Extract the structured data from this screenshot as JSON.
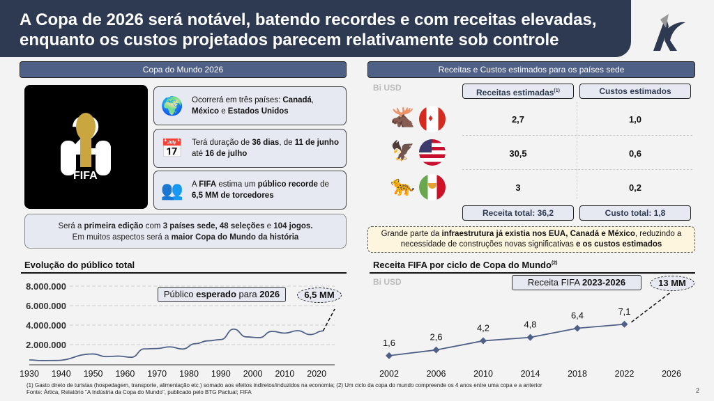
{
  "title": "A Copa de 2026 será notável, batendo recordes e com receitas elevadas, enquanto os custos projetados parecem relativamente sob controle",
  "left_header": "Copa do Mundo 2026",
  "right_header": "Receitas e Custos estimados para os países sede",
  "fifa_logo": {
    "text": "FIFA",
    "year": "26"
  },
  "info": [
    {
      "icon": "map-pin-globe-icon",
      "parts": [
        "Ocorrerá em três países: ",
        "Canadá",
        ", ",
        "México",
        " e ",
        "Estados Unidos",
        ""
      ]
    },
    {
      "icon": "calendar-icon",
      "parts": [
        "Terá duração de ",
        "36 dias",
        ", de ",
        "11 de junho",
        " até ",
        "16 de julho",
        ""
      ]
    },
    {
      "icon": "crowd-icon",
      "parts": [
        "A ",
        "FIFA",
        " estima um ",
        "público recorde",
        " de ",
        "6,5 MM de torcedores",
        ""
      ]
    }
  ],
  "edition": {
    "parts": [
      "Será a ",
      "primeira edição",
      " com ",
      "3 países sede, 48 seleções",
      " e ",
      "104 jogos.",
      "Em muitos aspectos será a ",
      "maior Copa do Mundo da história"
    ]
  },
  "table": {
    "unit": "Bi USD",
    "col_revenue": "Receitas estimadas",
    "col_revenue_sup": "(1)",
    "col_cost": "Custos estimados",
    "rows": [
      {
        "country": "Canadá",
        "mascot": "moose-mascot",
        "revenue": "2,7",
        "cost": "1,0"
      },
      {
        "country": "Estados Unidos",
        "mascot": "eagle-mascot",
        "revenue": "30,5",
        "cost": "0,6"
      },
      {
        "country": "México",
        "mascot": "jaguar-mascot",
        "revenue": "3",
        "cost": "0,2"
      }
    ],
    "total_revenue": "Receita total: 36,2",
    "total_cost": "Custo total: 1,8"
  },
  "note": {
    "parts": [
      "Grande parte da ",
      "infraestrutura já existia nos EUA, Canadá e México",
      ", reduzindo a necessidade de construções novas significativas ",
      "e os custos estimados"
    ]
  },
  "chart_data": [
    {
      "type": "line",
      "title": "Evolução do público total",
      "x": [
        1930,
        1934,
        1938,
        1950,
        1954,
        1958,
        1962,
        1966,
        1970,
        1974,
        1978,
        1982,
        1986,
        1990,
        1994,
        1998,
        2002,
        2006,
        2010,
        2014,
        2018,
        2022
      ],
      "values": [
        430000,
        360000,
        370000,
        1040000,
        770000,
        820000,
        700000,
        1560000,
        1600000,
        1770000,
        1550000,
        2100000,
        2390000,
        2520000,
        3590000,
        2790000,
        2710000,
        3360000,
        3180000,
        3430000,
        3030000,
        3400000
      ],
      "projection": {
        "x": 2026,
        "value": 6500000,
        "label": "6,5 MM",
        "callout": [
          "Público ",
          "esperado",
          " para ",
          "2026"
        ]
      },
      "yticks": [
        "2.000.000",
        "4.000.000",
        "6.000.000",
        "8.000.000"
      ],
      "ytick_values": [
        2000000,
        4000000,
        6000000,
        8000000
      ],
      "xticks": [
        "1930",
        "1940",
        "1950",
        "1960",
        "1970",
        "1980",
        "1990",
        "2000",
        "2010",
        "2020"
      ],
      "ylim": [
        0,
        8000000
      ],
      "grid": true,
      "color": "#4f6087"
    },
    {
      "type": "line",
      "title": "Receita FIFA por ciclo de Copa do Mundo",
      "title_sup": "(2)",
      "unit": "Bi USD",
      "categories": [
        "2002",
        "2006",
        "2010",
        "2014",
        "2018",
        "2022",
        "2026"
      ],
      "values": [
        1.6,
        2.6,
        4.2,
        4.8,
        6.4,
        7.1,
        null
      ],
      "labels": [
        "1,6",
        "2,6",
        "4,2",
        "4,8",
        "6,4",
        "7,1"
      ],
      "projection": {
        "x": "2026",
        "label": "13 MM",
        "callout": [
          "Receita FIFA ",
          "2023-2026"
        ]
      },
      "color": "#4f6087",
      "grid": false
    }
  ],
  "footnote1": "(1) Gasto direto de turistas (hospedagem, transporte, alimentação etc.) somado aos efeitos indiretos/induzidos na economia; (2) Um ciclo da copa do mundo compreende os 4 anos entre uma copa e a anterior",
  "footnote2": "Fonte: Ártica, Relatório \"A Indústria da Copa do Mundo\", publicado pelo BTG Pactual; FIFA",
  "page": "2"
}
